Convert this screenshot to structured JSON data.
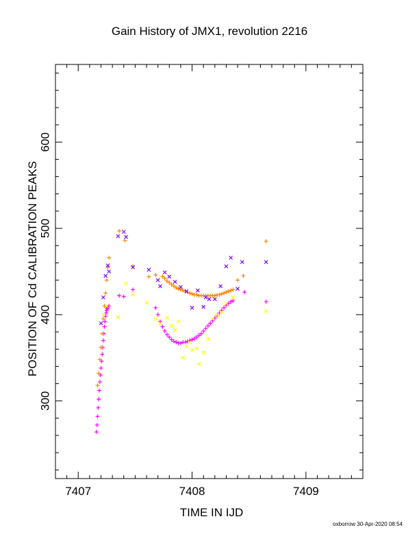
{
  "chart_data": {
    "type": "scatter",
    "title": "Gain History of JMX1, revolution 2216",
    "xlabel": "TIME IN IJD",
    "ylabel": "POSITION OF Cd CALIBRATION PEAKS",
    "xlim": [
      7406.8,
      7409.5
    ],
    "ylim": [
      210,
      690
    ],
    "x_ticks": [
      7407,
      7408,
      7409
    ],
    "x_tick_labels": [
      "7407",
      "7408",
      "7409"
    ],
    "y_ticks": [
      300,
      400,
      500,
      600
    ],
    "y_tick_labels": [
      "300",
      "400",
      "500",
      "600"
    ],
    "grid": false,
    "legend": "none",
    "series": [
      {
        "color": "#ff00ff",
        "marker": "plus",
        "x": [
          7407.16,
          7407.165,
          7407.17,
          7407.175,
          7407.18,
          7407.185,
          7407.19,
          7407.195,
          7407.2,
          7407.205,
          7407.21,
          7407.215,
          7407.22,
          7407.225,
          7407.23,
          7407.235,
          7407.24,
          7407.245,
          7407.25,
          7407.255,
          7407.26,
          7407.27,
          7407.36,
          7407.4,
          7407.48,
          7407.68,
          7407.7,
          7407.72,
          7407.74,
          7407.76,
          7407.78,
          7407.8,
          7407.82,
          7407.84,
          7407.86,
          7407.88,
          7407.9,
          7407.92,
          7407.94,
          7407.96,
          7407.98,
          7408.0,
          7408.02,
          7408.04,
          7408.06,
          7408.08,
          7408.1,
          7408.12,
          7408.14,
          7408.16,
          7408.18,
          7408.2,
          7408.22,
          7408.24,
          7408.26,
          7408.28,
          7408.3,
          7408.32,
          7408.34,
          7408.36,
          7408.46,
          7408.65
        ],
        "y": [
          264,
          272,
          282,
          292,
          302,
          312,
          322,
          330,
          338,
          346,
          354,
          362,
          370,
          378,
          386,
          392,
          398,
          402,
          405,
          407,
          408,
          410,
          422,
          421,
          429,
          408,
          400,
          392,
          386,
          381,
          377,
          374,
          371,
          369,
          368,
          367,
          367,
          368,
          368,
          369,
          370,
          371,
          372,
          374,
          376,
          378,
          381,
          384,
          387,
          390,
          393,
          396,
          399,
          402,
          405,
          408,
          411,
          413,
          415,
          416,
          426,
          415
        ]
      },
      {
        "color": "#ff8000",
        "marker": "plus",
        "x": [
          7407.17,
          7407.18,
          7407.19,
          7407.2,
          7407.21,
          7407.22,
          7407.23,
          7407.24,
          7407.25,
          7407.26,
          7407.27,
          7407.36,
          7407.41,
          7407.48,
          7407.62,
          7407.68,
          7407.74,
          7407.76,
          7407.78,
          7407.8,
          7407.82,
          7407.84,
          7407.86,
          7407.88,
          7407.9,
          7407.92,
          7407.94,
          7407.96,
          7407.98,
          7408.0,
          7408.02,
          7408.04,
          7408.06,
          7408.08,
          7408.1,
          7408.12,
          7408.14,
          7408.16,
          7408.18,
          7408.2,
          7408.22,
          7408.24,
          7408.26,
          7408.28,
          7408.3,
          7408.32,
          7408.34,
          7408.36,
          7408.4,
          7408.45,
          7408.65
        ],
        "y": [
          318,
          332,
          348,
          362,
          378,
          395,
          410,
          425,
          440,
          455,
          466,
          497,
          486,
          456,
          444,
          446,
          444,
          442,
          439,
          437,
          435,
          433,
          431,
          430,
          429,
          428,
          427,
          426,
          425,
          424,
          423,
          423,
          422,
          422,
          422,
          422,
          422,
          422,
          422,
          422,
          423,
          423,
          424,
          425,
          426,
          427,
          428,
          429,
          440,
          445,
          485
        ]
      },
      {
        "color": "#7f00ff",
        "marker": "x",
        "x": [
          7407.2,
          7407.22,
          7407.24,
          7407.26,
          7407.27,
          7407.35,
          7407.4,
          7407.42,
          7407.48,
          7407.62,
          7407.7,
          7407.72,
          7407.76,
          7407.8,
          7407.85,
          7407.9,
          7407.95,
          7408.0,
          7408.05,
          7408.1,
          7408.12,
          7408.15,
          7408.2,
          7408.25,
          7408.3,
          7408.34,
          7408.4,
          7408.44,
          7408.65
        ],
        "y": [
          390,
          420,
          445,
          457,
          450,
          491,
          496,
          490,
          455,
          452,
          440,
          433,
          449,
          444,
          438,
          432,
          427,
          408,
          428,
          409,
          420,
          418,
          418,
          433,
          456,
          466,
          430,
          461,
          461
        ]
      },
      {
        "color": "#ffff00",
        "marker": "x",
        "x": [
          7407.22,
          7407.25,
          7407.35,
          7407.42,
          7407.48,
          7407.6,
          7407.68,
          7407.72,
          7407.78,
          7407.82,
          7407.85,
          7407.88,
          7407.92,
          7407.95,
          7407.98,
          7408.0,
          7408.04,
          7408.06,
          7408.1,
          7408.14,
          7408.18,
          7408.22,
          7408.26,
          7408.3,
          7408.36,
          7408.65
        ],
        "y": [
          400,
          410,
          397,
          436,
          423,
          414,
          395,
          390,
          396,
          387,
          382,
          392,
          350,
          363,
          368,
          359,
          361,
          343,
          356,
          372,
          395,
          400,
          403,
          413,
          420,
          404
        ]
      }
    ]
  },
  "footer": {
    "text": "oxborrow 30-Apr-2020 08:54"
  }
}
